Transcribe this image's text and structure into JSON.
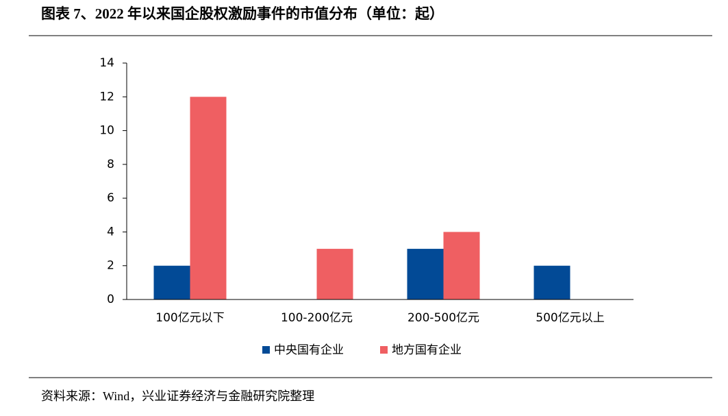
{
  "chart_data": {
    "type": "bar",
    "title": "图表 7、2022 年以来国企股权激励事件的市值分布（单位：起）",
    "source": "资料来源：Wind，兴业证券经济与金融研究院整理",
    "categories": [
      "100亿元以下",
      "100-200亿元",
      "200-500亿元",
      "500亿元以上"
    ],
    "series": [
      {
        "name": "中央国有企业",
        "color": "#024a96",
        "values": [
          2,
          0,
          3,
          2
        ]
      },
      {
        "name": "地方国有企业",
        "color": "#ef5f62",
        "values": [
          12,
          3,
          4,
          0
        ]
      }
    ],
    "ylim": [
      0,
      14
    ],
    "yticks": [
      0,
      2,
      4,
      6,
      8,
      10,
      12,
      14
    ]
  }
}
